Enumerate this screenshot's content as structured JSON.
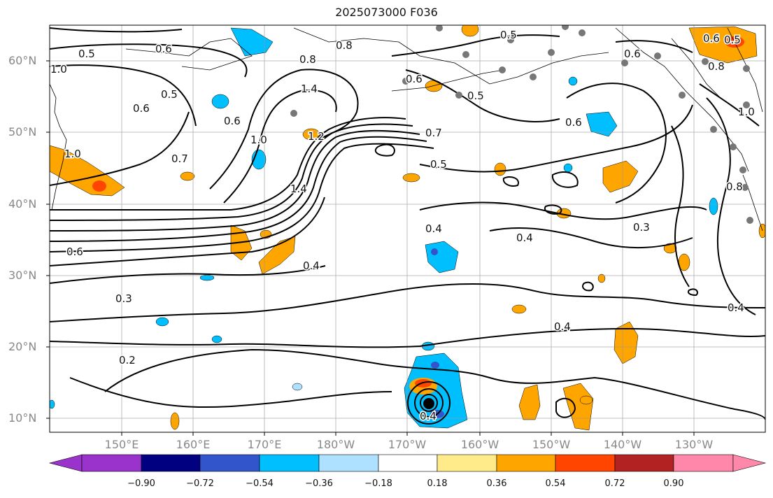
{
  "title": "2025073000 F036",
  "lat_labels": [
    "60°N",
    "50°N",
    "40°N",
    "30°N",
    "20°N",
    "10°N"
  ],
  "lon_labels": [
    "150°E",
    "160°E",
    "170°E",
    "180°W",
    "170°W",
    "160°W",
    "150°W",
    "140°W",
    "130°W"
  ],
  "contour_labels": [
    "0.5",
    "0.6",
    "0.8",
    "1.4",
    "0.5",
    "0.6",
    "0.8",
    "0.6",
    "0.5",
    "0.7",
    "0.5",
    "0.6",
    "0.7",
    "0.5",
    "0.6",
    "1.0",
    "1.2",
    "1.4",
    "0.4",
    "0.4",
    "0.4",
    "0.3",
    "0.3",
    "0.2",
    "0.4",
    "0.4",
    "0.6",
    "1.0",
    "0.8",
    "0.6",
    "1.0",
    "1.0",
    "0.6",
    "0.8",
    "0.5",
    "0.4"
  ],
  "colorbar": {
    "ticks": [
      "−0.90",
      "−0.72",
      "−0.54",
      "−0.36",
      "−0.18",
      "0.18",
      "0.36",
      "0.54",
      "0.72",
      "0.90"
    ],
    "colors": [
      "#9933cc",
      "#000080",
      "#3355cc",
      "#00bfff",
      "#aee0ff",
      "#ffffff",
      "#ffeb8a",
      "#ffa500",
      "#ff4500",
      "#b22222",
      "#ff88aa"
    ]
  }
}
